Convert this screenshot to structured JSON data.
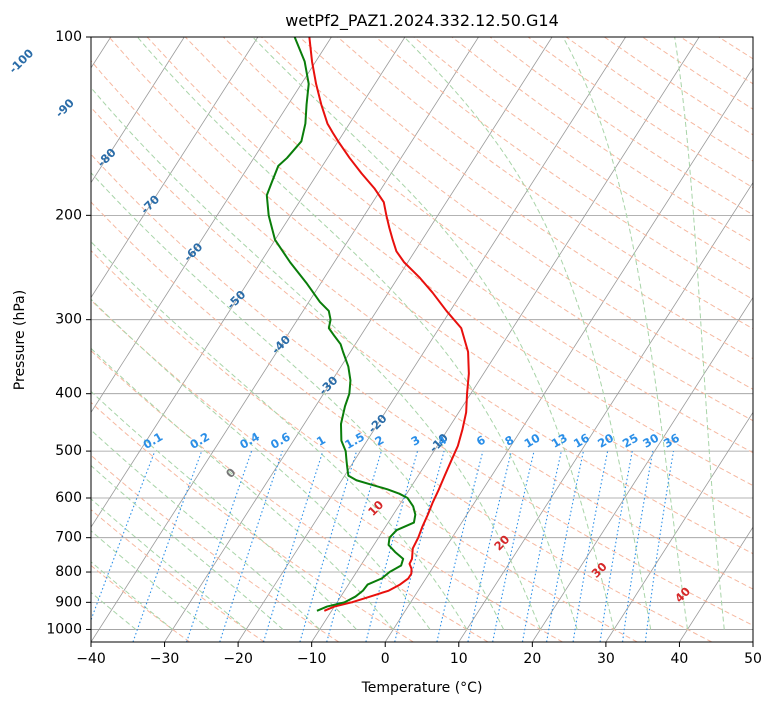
{
  "chart_data": {
    "type": "line",
    "title": "wetPf2_PAZ1.2024.332.12.50.G14",
    "xlabel": "Temperature (°C)",
    "ylabel": "Pressure (hPa)",
    "xlim": [
      -40,
      50
    ],
    "ylim": [
      1050,
      100
    ],
    "y_scale": "log",
    "grid": true,
    "x_ticks": [
      "−40",
      "−30",
      "−20",
      "−10",
      "0",
      "10",
      "20",
      "30",
      "40",
      "50"
    ],
    "x_tick_values": [
      -40,
      -30,
      -20,
      -10,
      0,
      10,
      20,
      30,
      40,
      50
    ],
    "y_ticks": [
      "100",
      "200",
      "300",
      "400",
      "500",
      "600",
      "700",
      "800",
      "900",
      "1000"
    ],
    "y_tick_values": [
      100,
      200,
      300,
      400,
      500,
      600,
      700,
      800,
      900,
      1000
    ],
    "series": [
      {
        "role": "temperature",
        "color": "#e8100d",
        "pressure": [
          930,
          915,
          900,
          880,
          860,
          840,
          820,
          805,
          790,
          775,
          760,
          730,
          700,
          670,
          640,
          610,
          580,
          550,
          520,
          490,
          460,
          430,
          400,
          370,
          340,
          310,
          290,
          270,
          255,
          240,
          230,
          220,
          210,
          200,
          190,
          180,
          170,
          160,
          150,
          145,
          140,
          130,
          120,
          110,
          100
        ],
        "temperature": [
          -11,
          -10,
          -8,
          -6,
          -4,
          -3,
          -2.4,
          -2.4,
          -2.8,
          -3.5,
          -3.6,
          -4.4,
          -4.6,
          -5,
          -5.3,
          -5.7,
          -6,
          -6.4,
          -6.8,
          -7.2,
          -8,
          -9,
          -10.5,
          -12,
          -14,
          -17,
          -20.5,
          -24,
          -27,
          -30.5,
          -32.5,
          -34,
          -35.5,
          -37,
          -38.5,
          -41,
          -44,
          -47,
          -50,
          -51.5,
          -53,
          -55.5,
          -58,
          -60.5,
          -63
        ]
      },
      {
        "role": "dewpoint",
        "color": "#0a7d0a",
        "pressure": [
          930,
          915,
          900,
          880,
          860,
          840,
          820,
          800,
          780,
          760,
          740,
          720,
          700,
          680,
          660,
          640,
          620,
          600,
          590,
          580,
          570,
          560,
          550,
          540,
          530,
          520,
          500,
          480,
          450,
          420,
          400,
          380,
          360,
          340,
          330,
          320,
          310,
          300,
          290,
          280,
          260,
          240,
          220,
          200,
          185,
          175,
          165,
          160,
          150,
          140,
          130,
          120,
          110,
          100
        ],
        "temperature": [
          -12,
          -11,
          -9,
          -8,
          -7.5,
          -7.4,
          -6,
          -5.5,
          -4.5,
          -4.8,
          -6.5,
          -8,
          -8.5,
          -8.2,
          -6.5,
          -7,
          -8,
          -9.5,
          -11,
          -13,
          -15.5,
          -18,
          -19.5,
          -20,
          -20.5,
          -21,
          -22,
          -23.5,
          -25,
          -26,
          -26.5,
          -27.5,
          -29,
          -31,
          -32,
          -33.5,
          -35,
          -35.5,
          -36.5,
          -38.5,
          -42,
          -46,
          -50,
          -53,
          -55,
          -55.5,
          -56,
          -55.5,
          -55,
          -56,
          -57.5,
          -59,
          -61.5,
          -65
        ]
      }
    ],
    "dry_adiabat_labels": [
      {
        "text": "-100",
        "p": 110
      },
      {
        "text": "-90",
        "p": 132
      },
      {
        "text": "-80",
        "p": 160
      },
      {
        "text": "-70",
        "p": 192
      },
      {
        "text": "-60",
        "p": 231
      },
      {
        "text": "-50",
        "p": 278
      },
      {
        "text": "-40",
        "p": 331
      },
      {
        "text": "-30",
        "p": 388
      },
      {
        "text": "-20",
        "p": 450
      },
      {
        "text": "-10",
        "p": 485
      }
    ],
    "mixing_ratio_labels": [
      "0.1",
      "0.2",
      "0.4",
      "0.6",
      "1",
      "1.5",
      "2",
      "3",
      "4",
      "6",
      "8",
      "10",
      "13",
      "16",
      "20",
      "25",
      "30",
      "36"
    ],
    "mixing_ratio_values": [
      0.1,
      0.2,
      0.4,
      0.6,
      1,
      1.5,
      2,
      3,
      4,
      6,
      8,
      10,
      13,
      16,
      20,
      25,
      30,
      36
    ],
    "moist_adiabat_labels": [
      {
        "text": "0",
        "t": 0,
        "color": "#777777"
      },
      {
        "text": "10",
        "t": 10,
        "color": "#d62728"
      },
      {
        "text": "20",
        "t": 20,
        "color": "#d62728"
      },
      {
        "text": "30",
        "t": 30,
        "color": "#d62728"
      },
      {
        "text": "40",
        "t": 40,
        "color": "#d62728"
      }
    ],
    "colors": {
      "temperature": "#e8100d",
      "dewpoint": "#0a7d0a",
      "dry_label": "#2a6ca8",
      "mixing_ratio": "#2b8fe8",
      "dry_adiabat_line": "#f6b8a0",
      "moist_adiabat_line": "#a8d4a8",
      "isotherm": "#9a9a9a"
    }
  }
}
